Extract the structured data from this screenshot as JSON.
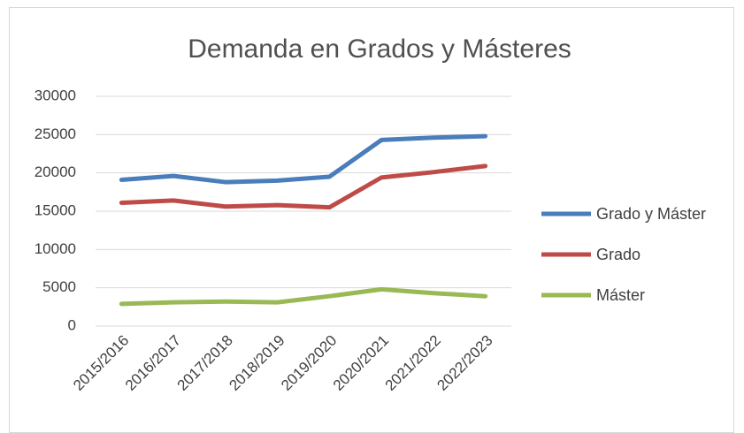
{
  "chart_data": {
    "type": "line",
    "title": "Demanda en Grados y Másteres",
    "categories": [
      "2015/2016",
      "2016/2017",
      "2017/2018",
      "2018/2019",
      "2019/2020",
      "2020/2021",
      "2021/2022",
      "2022/2023"
    ],
    "series": [
      {
        "name": "Grado y Máster",
        "color": "#4a7ebb",
        "values": [
          19100,
          19600,
          18800,
          19000,
          19500,
          24300,
          24600,
          24800
        ]
      },
      {
        "name": "Grado",
        "color": "#be4b48",
        "values": [
          16100,
          16400,
          15600,
          15800,
          15500,
          19400,
          20100,
          20900
        ]
      },
      {
        "name": "Máster",
        "color": "#98b954",
        "values": [
          2900,
          3100,
          3200,
          3100,
          3900,
          4800,
          4300,
          3900
        ]
      }
    ],
    "ylim": [
      0,
      30000
    ],
    "yticks": [
      0,
      5000,
      10000,
      15000,
      20000,
      25000,
      30000
    ],
    "grid": true,
    "legend": "right"
  }
}
